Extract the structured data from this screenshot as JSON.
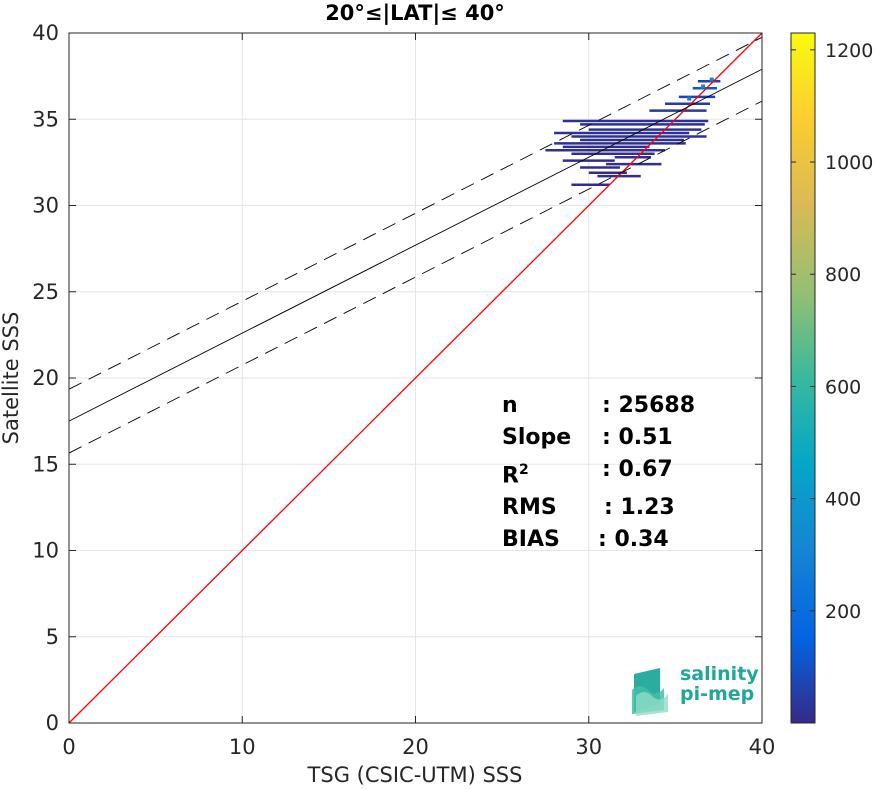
{
  "chart_data": {
    "type": "heatmap",
    "title": "20°≤|LAT|≤ 40°",
    "xlabel": "TSG (CSIC-UTM) SSS",
    "ylabel": "Satellite SSS",
    "xlim": [
      0,
      40
    ],
    "ylim": [
      0,
      40
    ],
    "xticks": [
      "0",
      "10",
      "20",
      "30",
      "40"
    ],
    "yticks": [
      "0",
      "5",
      "10",
      "15",
      "20",
      "25",
      "30",
      "35",
      "40"
    ],
    "grid": true,
    "colorbar": {
      "range": [
        0,
        1230
      ],
      "ticks": [
        "200",
        "400",
        "600",
        "800",
        "1000",
        "1200"
      ],
      "colormap": "parula"
    },
    "lines": [
      {
        "role": "identity",
        "color": "#ff0000",
        "style": "solid",
        "intercept": 0,
        "slope": 1
      },
      {
        "role": "regression",
        "color": "#000000",
        "style": "solid",
        "intercept": 17.5,
        "slope": 0.51
      },
      {
        "role": "upper-bound",
        "color": "#000000",
        "style": "dashed",
        "intercept": 19.35,
        "slope": 0.51
      },
      {
        "role": "lower-bound",
        "color": "#000000",
        "style": "dashed",
        "intercept": 15.65,
        "slope": 0.51
      }
    ],
    "density_segments": [
      {
        "x0": 34.4,
        "x1": 37.0,
        "y": 35.9,
        "count": 40
      },
      {
        "x0": 35.2,
        "x1": 37.3,
        "y": 36.3,
        "count": 60
      },
      {
        "x0": 36.0,
        "x1": 37.4,
        "y": 36.8,
        "count": 120
      },
      {
        "x0": 36.3,
        "x1": 37.6,
        "y": 37.2,
        "count": 60
      },
      {
        "x0": 33.5,
        "x1": 36.8,
        "y": 35.5,
        "count": 30
      },
      {
        "x0": 28.5,
        "x1": 36.9,
        "y": 34.9,
        "count": 20
      },
      {
        "x0": 29.5,
        "x1": 36.7,
        "y": 34.7,
        "count": 18
      },
      {
        "x0": 30.0,
        "x1": 36.5,
        "y": 34.4,
        "count": 22
      },
      {
        "x0": 28.0,
        "x1": 35.8,
        "y": 34.2,
        "count": 15
      },
      {
        "x0": 29.0,
        "x1": 36.8,
        "y": 34.0,
        "count": 25
      },
      {
        "x0": 29.5,
        "x1": 35.5,
        "y": 33.8,
        "count": 14
      },
      {
        "x0": 28.0,
        "x1": 35.6,
        "y": 33.6,
        "count": 18
      },
      {
        "x0": 28.5,
        "x1": 33.5,
        "y": 33.4,
        "count": 12
      },
      {
        "x0": 27.5,
        "x1": 34.4,
        "y": 33.2,
        "count": 16
      },
      {
        "x0": 29.0,
        "x1": 33.8,
        "y": 33.0,
        "count": 10
      },
      {
        "x0": 31.5,
        "x1": 33.6,
        "y": 32.8,
        "count": 8
      },
      {
        "x0": 28.5,
        "x1": 31.5,
        "y": 32.6,
        "count": 8
      },
      {
        "x0": 31.0,
        "x1": 34.2,
        "y": 32.4,
        "count": 10
      },
      {
        "x0": 29.5,
        "x1": 31.8,
        "y": 32.2,
        "count": 6
      },
      {
        "x0": 30.0,
        "x1": 32.2,
        "y": 31.9,
        "count": 6
      },
      {
        "x0": 30.5,
        "x1": 33.0,
        "y": 31.7,
        "count": 5
      },
      {
        "x0": 29.0,
        "x1": 31.2,
        "y": 31.2,
        "count": 5
      }
    ],
    "stats": [
      {
        "label": "n",
        "value": ": 25688"
      },
      {
        "label": "Slope",
        "value": ": 0.51"
      },
      {
        "label": "R",
        "sup": "2",
        "value": ": 0.67"
      },
      {
        "label": "RMS",
        "value": ": 1.23"
      },
      {
        "label": "BIAS",
        "value": ": 0.34"
      }
    ]
  },
  "logo": {
    "line1": "salinity",
    "line2": "pi-mep",
    "color": "#1fa89a"
  }
}
